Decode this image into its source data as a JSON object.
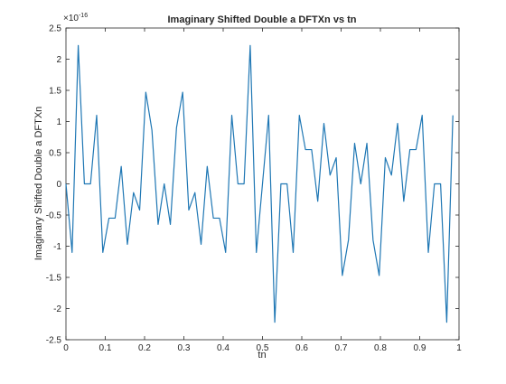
{
  "chart_data": {
    "type": "line",
    "title": "Imaginary Shifted Double a DFTXn vs tn",
    "xlabel": "tn",
    "ylabel": "Imaginary Shifted Double a DFTXn",
    "y_exponent": {
      "base": "×10",
      "power": "-16"
    },
    "xlim": [
      0,
      1
    ],
    "ylim": [
      -2.5,
      2.5
    ],
    "grid": false,
    "x_ticks": [
      0,
      0.1,
      0.2,
      0.3,
      0.4,
      0.5,
      0.6,
      0.7,
      0.8,
      0.9,
      1
    ],
    "x_tick_labels": [
      "0",
      "0.1",
      "0.2",
      "0.3",
      "0.4",
      "0.5",
      "0.6",
      "0.7",
      "0.8",
      "0.9",
      "1"
    ],
    "y_ticks": [
      -2.5,
      -2,
      -1.5,
      -1,
      -0.5,
      0,
      0.5,
      1,
      1.5,
      2,
      2.5
    ],
    "y_tick_labels": [
      "-2.5",
      "-2",
      "-1.5",
      "-1",
      "-0.5",
      "0",
      "0.5",
      "1",
      "1.5",
      "2",
      "2.5"
    ],
    "line_color": "#1f77b4",
    "axis_color": "#262626",
    "series": [
      {
        "x": [
          0,
          0.01563,
          0.03125,
          0.04688,
          0.0625,
          0.07813,
          0.09375,
          0.10938,
          0.125,
          0.14063,
          0.15625,
          0.17188,
          0.1875,
          0.20313,
          0.21875,
          0.23438,
          0.25,
          0.26563,
          0.28125,
          0.29688,
          0.3125,
          0.32813,
          0.34375,
          0.35938,
          0.375,
          0.39063,
          0.40625,
          0.42188,
          0.4375,
          0.45313,
          0.46875,
          0.48438,
          0.5,
          0.51563,
          0.53125,
          0.54688,
          0.5625,
          0.57813,
          0.59375,
          0.60938,
          0.625,
          0.64063,
          0.65625,
          0.67188,
          0.6875,
          0.70313,
          0.71875,
          0.73438,
          0.75,
          0.76563,
          0.78125,
          0.79688,
          0.8125,
          0.82813,
          0.84375,
          0.85938,
          0.875,
          0.89063,
          0.90625,
          0.92188,
          0.9375,
          0.95313,
          0.96875,
          0.98438
        ],
        "y": [
          0,
          -1.1,
          2.22,
          0,
          0,
          1.1,
          -1.1,
          -0.55,
          -0.55,
          0.28,
          -0.97,
          -0.14,
          -0.42,
          1.47,
          0.86,
          -0.65,
          0,
          -0.65,
          0.9,
          1.47,
          -0.42,
          -0.14,
          -0.97,
          0.28,
          -0.55,
          -0.55,
          -1.1,
          1.1,
          0,
          0,
          2.22,
          -1.1,
          0,
          1.1,
          -2.22,
          0,
          0,
          -1.1,
          1.1,
          0.55,
          0.55,
          -0.28,
          0.97,
          0.14,
          0.42,
          -1.47,
          -0.9,
          0.65,
          0,
          0.65,
          -0.9,
          -1.47,
          0.42,
          0.14,
          0.97,
          -0.28,
          0.55,
          0.55,
          1.1,
          -1.1,
          0,
          0,
          -2.22,
          1.1
        ]
      }
    ]
  }
}
